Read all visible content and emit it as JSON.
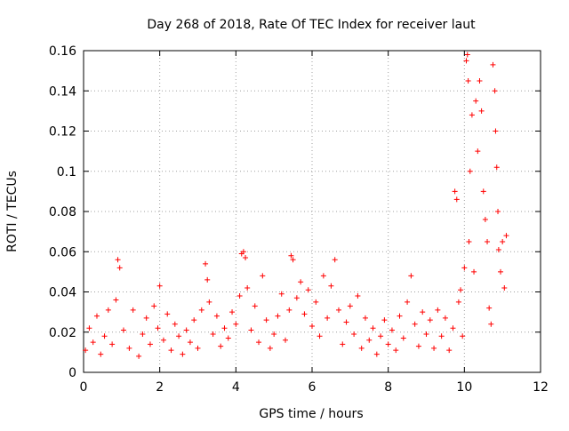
{
  "chart_data": {
    "type": "scatter",
    "title": "Day 268 of 2018, Rate Of TEC Index for receiver laut",
    "xlabel": "GPS time / hours",
    "ylabel": "ROTI / TECUs",
    "xlim": [
      0,
      12
    ],
    "ylim": [
      0,
      0.16
    ],
    "xticks": [
      0,
      2,
      4,
      6,
      8,
      10,
      12
    ],
    "xtick_labels": [
      "0",
      "2",
      "4",
      "6",
      "8",
      "10",
      "12"
    ],
    "yticks": [
      0,
      0.02,
      0.04,
      0.06,
      0.08,
      0.1,
      0.12,
      0.14,
      0.16
    ],
    "ytick_labels": [
      "0",
      "0.02",
      "0.04",
      "0.06",
      "0.08",
      "0.1",
      "0.12",
      "0.14",
      "0.16"
    ],
    "grid": true,
    "marker": "+",
    "series": [
      {
        "name": "ROTI",
        "color": "#ff0000",
        "points": [
          [
            0.05,
            0.011
          ],
          [
            0.15,
            0.022
          ],
          [
            0.25,
            0.015
          ],
          [
            0.35,
            0.028
          ],
          [
            0.45,
            0.009
          ],
          [
            0.55,
            0.018
          ],
          [
            0.65,
            0.031
          ],
          [
            0.75,
            0.014
          ],
          [
            0.85,
            0.036
          ],
          [
            0.9,
            0.056
          ],
          [
            0.95,
            0.052
          ],
          [
            1.05,
            0.021
          ],
          [
            1.2,
            0.012
          ],
          [
            1.3,
            0.031
          ],
          [
            1.45,
            0.008
          ],
          [
            1.55,
            0.019
          ],
          [
            1.65,
            0.027
          ],
          [
            1.75,
            0.014
          ],
          [
            1.85,
            0.033
          ],
          [
            1.95,
            0.022
          ],
          [
            2.0,
            0.043
          ],
          [
            2.1,
            0.016
          ],
          [
            2.2,
            0.029
          ],
          [
            2.3,
            0.011
          ],
          [
            2.4,
            0.024
          ],
          [
            2.5,
            0.018
          ],
          [
            2.6,
            0.009
          ],
          [
            2.7,
            0.021
          ],
          [
            2.8,
            0.015
          ],
          [
            2.9,
            0.026
          ],
          [
            3.0,
            0.012
          ],
          [
            3.1,
            0.031
          ],
          [
            3.2,
            0.054
          ],
          [
            3.25,
            0.046
          ],
          [
            3.3,
            0.035
          ],
          [
            3.4,
            0.019
          ],
          [
            3.5,
            0.028
          ],
          [
            3.6,
            0.013
          ],
          [
            3.7,
            0.022
          ],
          [
            3.8,
            0.017
          ],
          [
            3.9,
            0.03
          ],
          [
            4.0,
            0.024
          ],
          [
            4.1,
            0.038
          ],
          [
            4.15,
            0.059
          ],
          [
            4.2,
            0.06
          ],
          [
            4.25,
            0.057
          ],
          [
            4.3,
            0.042
          ],
          [
            4.4,
            0.021
          ],
          [
            4.5,
            0.033
          ],
          [
            4.6,
            0.015
          ],
          [
            4.7,
            0.048
          ],
          [
            4.8,
            0.026
          ],
          [
            4.9,
            0.012
          ],
          [
            5.0,
            0.019
          ],
          [
            5.1,
            0.028
          ],
          [
            5.2,
            0.039
          ],
          [
            5.3,
            0.016
          ],
          [
            5.4,
            0.031
          ],
          [
            5.45,
            0.058
          ],
          [
            5.5,
            0.056
          ],
          [
            5.6,
            0.037
          ],
          [
            5.7,
            0.045
          ],
          [
            5.8,
            0.029
          ],
          [
            5.9,
            0.041
          ],
          [
            6.0,
            0.023
          ],
          [
            6.1,
            0.035
          ],
          [
            6.2,
            0.018
          ],
          [
            6.3,
            0.048
          ],
          [
            6.4,
            0.027
          ],
          [
            6.5,
            0.043
          ],
          [
            6.6,
            0.056
          ],
          [
            6.7,
            0.031
          ],
          [
            6.8,
            0.014
          ],
          [
            6.9,
            0.025
          ],
          [
            7.0,
            0.033
          ],
          [
            7.1,
            0.019
          ],
          [
            7.2,
            0.038
          ],
          [
            7.3,
            0.012
          ],
          [
            7.4,
            0.027
          ],
          [
            7.5,
            0.016
          ],
          [
            7.6,
            0.022
          ],
          [
            7.7,
            0.009
          ],
          [
            7.8,
            0.018
          ],
          [
            7.9,
            0.026
          ],
          [
            8.0,
            0.014
          ],
          [
            8.1,
            0.021
          ],
          [
            8.2,
            0.011
          ],
          [
            8.3,
            0.028
          ],
          [
            8.4,
            0.017
          ],
          [
            8.5,
            0.035
          ],
          [
            8.6,
            0.048
          ],
          [
            8.7,
            0.024
          ],
          [
            8.8,
            0.013
          ],
          [
            8.9,
            0.03
          ],
          [
            9.0,
            0.019
          ],
          [
            9.1,
            0.026
          ],
          [
            9.2,
            0.012
          ],
          [
            9.3,
            0.031
          ],
          [
            9.4,
            0.018
          ],
          [
            9.5,
            0.027
          ],
          [
            9.6,
            0.011
          ],
          [
            9.7,
            0.022
          ],
          [
            9.75,
            0.09
          ],
          [
            9.8,
            0.086
          ],
          [
            9.85,
            0.035
          ],
          [
            9.9,
            0.041
          ],
          [
            9.95,
            0.018
          ],
          [
            10.0,
            0.052
          ],
          [
            10.05,
            0.155
          ],
          [
            10.08,
            0.158
          ],
          [
            10.1,
            0.145
          ],
          [
            10.12,
            0.065
          ],
          [
            10.15,
            0.1
          ],
          [
            10.2,
            0.128
          ],
          [
            10.25,
            0.05
          ],
          [
            10.3,
            0.135
          ],
          [
            10.35,
            0.11
          ],
          [
            10.4,
            0.145
          ],
          [
            10.45,
            0.13
          ],
          [
            10.5,
            0.09
          ],
          [
            10.55,
            0.076
          ],
          [
            10.6,
            0.065
          ],
          [
            10.65,
            0.032
          ],
          [
            10.7,
            0.024
          ],
          [
            10.75,
            0.153
          ],
          [
            10.8,
            0.14
          ],
          [
            10.82,
            0.12
          ],
          [
            10.85,
            0.102
          ],
          [
            10.88,
            0.08
          ],
          [
            10.9,
            0.061
          ],
          [
            10.95,
            0.05
          ],
          [
            11.0,
            0.065
          ],
          [
            11.05,
            0.042
          ],
          [
            11.1,
            0.068
          ]
        ]
      }
    ]
  }
}
